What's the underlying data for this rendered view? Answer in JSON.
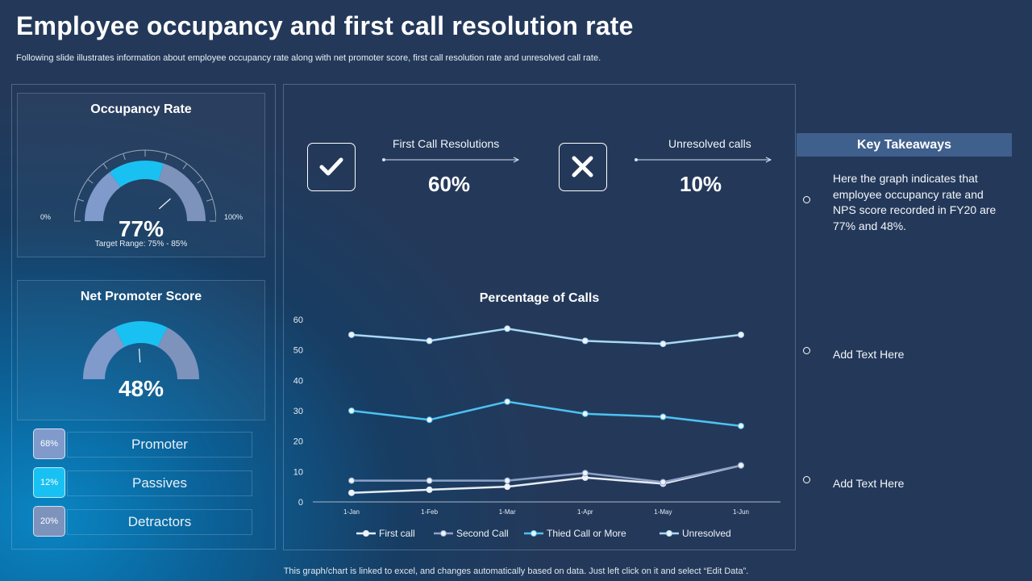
{
  "header": {
    "title": "Employee occupancy and first call resolution rate",
    "subtitle": "Following slide illustrates information about employee occupancy rate  along with net promoter score, first call resolution rate and unresolved call rate."
  },
  "occupancy": {
    "title": "Occupancy Rate",
    "value": "77%",
    "value_num": 77,
    "min_label": "0%",
    "max_label": "100%",
    "target_range": "Target Range: 75% - 85%"
  },
  "nps": {
    "title": "Net Promoter Score",
    "value": "48%",
    "value_num": 48
  },
  "segments": [
    {
      "pct": "68%",
      "label": "Promoter",
      "color": "#7f9acb"
    },
    {
      "pct": "12%",
      "label": "Passives",
      "color": "#19c1f2"
    },
    {
      "pct": "20%",
      "label": "Detractors",
      "color": "#7d93bc"
    }
  ],
  "kpis": {
    "first_call": {
      "label": "First Call Resolutions",
      "value": "60%",
      "icon": "checkmark-icon"
    },
    "unresolved": {
      "label": "Unresolved calls",
      "value": "10%",
      "icon": "cross-icon"
    }
  },
  "chart_title": "Percentage of Calls",
  "chart_data": {
    "type": "line",
    "title": "Percentage of Calls",
    "categories": [
      "1-Jan",
      "1-Feb",
      "1-Mar",
      "1-Apr",
      "1-May",
      "1-Jun"
    ],
    "ylim": [
      0,
      60
    ],
    "yticks": [
      0,
      10,
      20,
      30,
      40,
      50,
      60
    ],
    "grid": false,
    "legend": "bottom",
    "series": [
      {
        "name": "First call",
        "values": [
          3,
          4,
          5,
          8,
          6,
          12
        ],
        "color": "#e6ecf4"
      },
      {
        "name": "Second Call",
        "values": [
          7,
          7,
          7,
          9.5,
          6.5,
          12
        ],
        "color": "#8ea2c9"
      },
      {
        "name": "Thied Call or More",
        "values": [
          30,
          27,
          33,
          29,
          28,
          25
        ],
        "color": "#4cc3f2"
      },
      {
        "name": "Unresolved",
        "values": [
          55,
          53,
          57,
          53,
          52,
          55
        ],
        "color": "#a9d8f5"
      }
    ]
  },
  "takeaways": {
    "header": "Key Takeaways",
    "items": [
      "Here the graph indicates that employee occupancy rate and NPS score recorded in FY20 are 77% and 48%.",
      "Add Text Here",
      "Add Text Here"
    ]
  },
  "footer": "This graph/chart is linked to excel,  and changes automatically based on data. Just left click on it and select “Edit Data”."
}
